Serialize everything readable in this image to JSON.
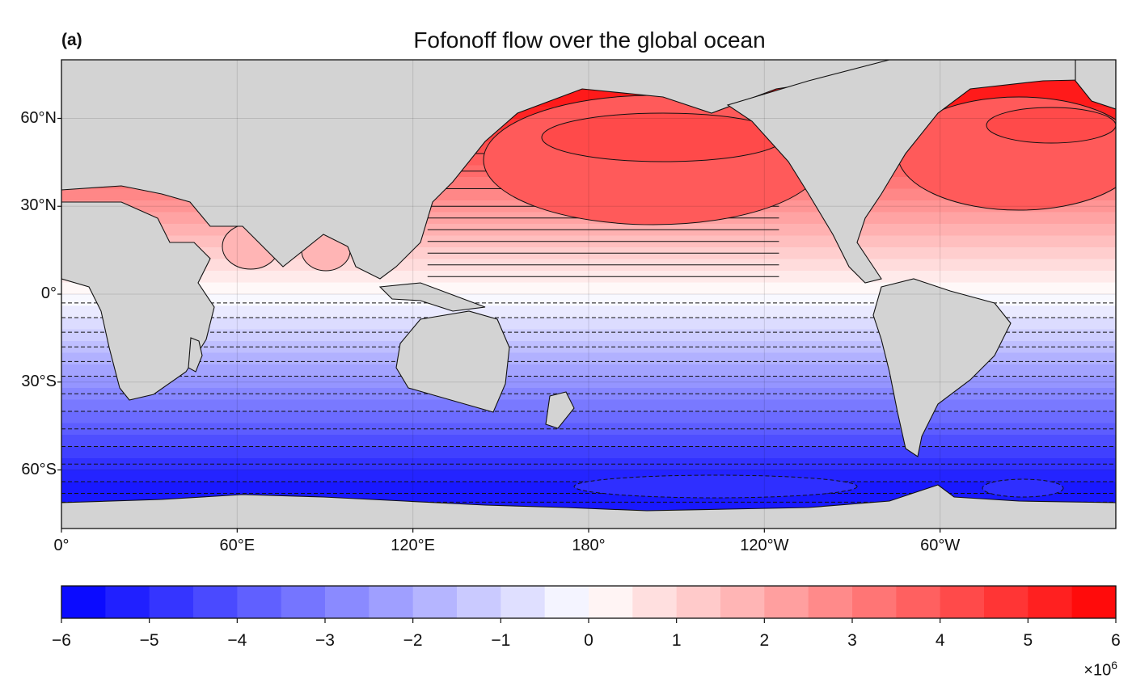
{
  "panel_label": "(a)",
  "title": "Fofonoff flow over the global ocean",
  "map": {
    "projection": "equirectangular",
    "central_longitude": 180,
    "lon_range": [
      0,
      360
    ],
    "lat_range": [
      -80,
      80
    ],
    "x_ticks": [
      {
        "label": "0°",
        "lon": 0
      },
      {
        "label": "60°E",
        "lon": 60
      },
      {
        "label": "120°E",
        "lon": 120
      },
      {
        "label": "180°",
        "lon": 180
      },
      {
        "label": "120°W",
        "lon": 240
      },
      {
        "label": "60°W",
        "lon": 300
      }
    ],
    "y_ticks": [
      {
        "label": "60°N",
        "lat": 60
      },
      {
        "label": "30°N",
        "lat": 30
      },
      {
        "label": "0°",
        "lat": 0
      },
      {
        "label": "30°S",
        "lat": -30
      },
      {
        "label": "60°S",
        "lat": -60
      }
    ],
    "land_color": "#d3d3d3",
    "gridlines": true,
    "positive_contours": "solid",
    "negative_contours": "dashed"
  },
  "colorbar": {
    "colormap": "bwr",
    "vmin": -6,
    "vmax": 6,
    "levels": 24,
    "ticks": [
      "−6",
      "−5",
      "−4",
      "−3",
      "−2",
      "−1",
      "0",
      "1",
      "2",
      "3",
      "4",
      "5",
      "6"
    ],
    "exponent_base": "×10",
    "exponent_power": "6"
  }
}
